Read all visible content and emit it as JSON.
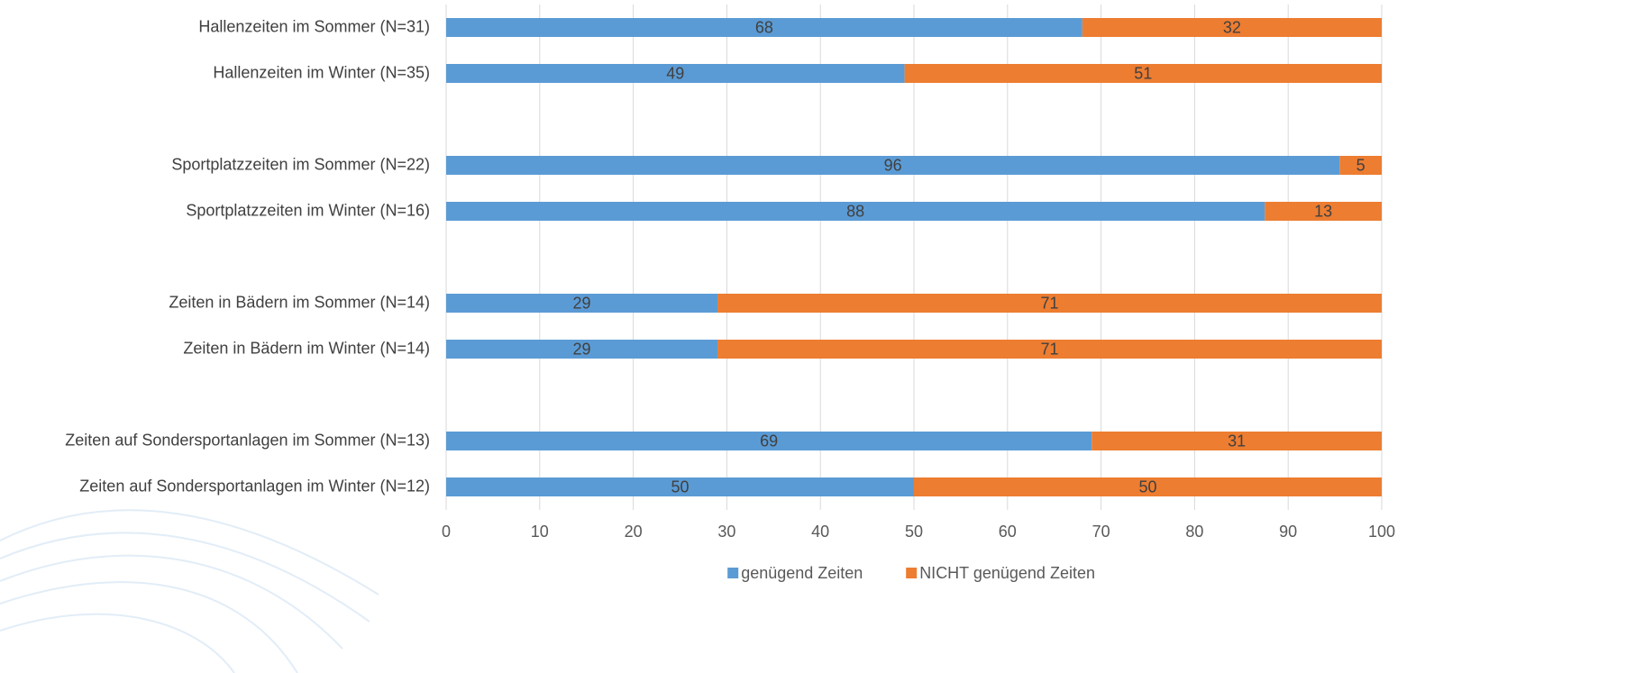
{
  "chart_data": {
    "type": "stacked-bar-horizontal",
    "categories": [
      "Hallenzeiten im Sommer (N=31)",
      "Hallenzeiten im Winter (N=35)",
      null,
      "Sportplatzzeiten im Sommer (N=22)",
      "Sportplatzzeiten im Winter (N=16)",
      null,
      "Zeiten in Bädern im Sommer (N=14)",
      "Zeiten in Bädern im Winter (N=14)",
      null,
      "Zeiten auf Sondersportanlagen im Sommer (N=13)",
      "Zeiten auf Sondersportanlagen im Winter (N=12)"
    ],
    "series": [
      {
        "name": "genügend Zeiten",
        "color": "#5b9bd5",
        "values": [
          68,
          49,
          null,
          95.5,
          87.5,
          null,
          29,
          29,
          null,
          69,
          50
        ],
        "value_labels": [
          "68",
          "49",
          null,
          "96",
          "88",
          null,
          "29",
          "29",
          null,
          "69",
          "50"
        ]
      },
      {
        "name": "NICHT genügend Zeiten",
        "color": "#ed7d31",
        "values": [
          32,
          51,
          null,
          4.5,
          12.5,
          null,
          71,
          71,
          null,
          31,
          50
        ],
        "value_labels": [
          "32",
          "51",
          null,
          "5",
          "13",
          null,
          "71",
          "71",
          null,
          "31",
          "50"
        ]
      }
    ],
    "xlim": [
      0,
      100
    ],
    "xticks": [
      0,
      10,
      20,
      30,
      40,
      50,
      60,
      70,
      80,
      90,
      100
    ],
    "grid": true,
    "legend": "bottom"
  }
}
